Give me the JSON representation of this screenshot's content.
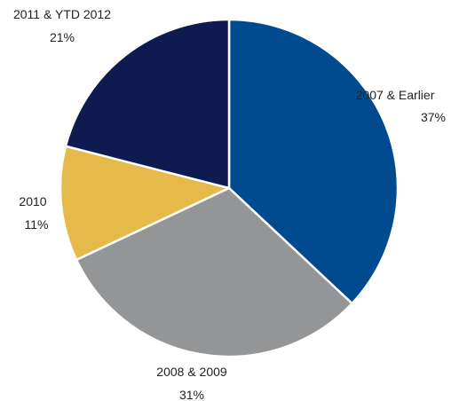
{
  "chart_data": {
    "type": "pie",
    "title": "",
    "legend": "none",
    "start_angle_deg": 0,
    "direction": "clockwise",
    "slices": [
      {
        "label": "2007 & Earlier",
        "value": 37,
        "value_label": "37%",
        "color": "#004a8f"
      },
      {
        "label": "2008 & 2009",
        "value": 31,
        "value_label": "31%",
        "color": "#939597"
      },
      {
        "label": "2010",
        "value": 11,
        "value_label": "11%",
        "color": "#e5b94a"
      },
      {
        "label": "2011 & YTD 2012",
        "value": 21,
        "value_label": "21%",
        "color": "#0d1b50"
      }
    ]
  }
}
